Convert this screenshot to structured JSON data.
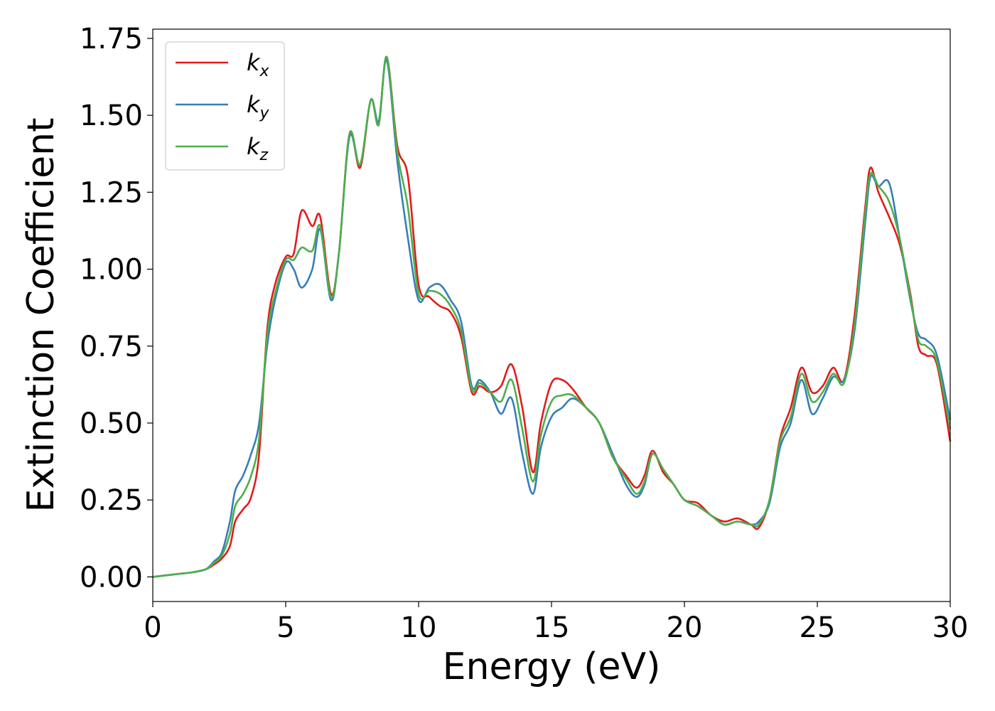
{
  "chart_data": {
    "type": "line",
    "xlabel": "Energy (eV)",
    "ylabel": "Extinction Coefficient",
    "xlim": [
      0,
      30
    ],
    "ylim": [
      -0.08,
      1.78
    ],
    "xticks": [
      0,
      5,
      10,
      15,
      20,
      25,
      30
    ],
    "xtick_labels": [
      "0",
      "5",
      "10",
      "15",
      "20",
      "25",
      "30"
    ],
    "yticks": [
      0.0,
      0.25,
      0.5,
      0.75,
      1.0,
      1.25,
      1.5,
      1.75
    ],
    "ytick_labels": [
      "0.00",
      "0.25",
      "0.50",
      "0.75",
      "1.00",
      "1.25",
      "1.50",
      "1.75"
    ],
    "grid": false,
    "legend_position": "top-left",
    "series": [
      {
        "name": "k_x",
        "label_main": "k",
        "label_sub": "x",
        "color": "#e41a1c",
        "x": [
          0,
          1,
          1.5,
          2,
          2.3,
          2.6,
          2.9,
          3.1,
          3.4,
          3.7,
          4.0,
          4.3,
          4.6,
          5.0,
          5.3,
          5.6,
          6.0,
          6.3,
          6.7,
          7.0,
          7.4,
          7.8,
          8.2,
          8.5,
          8.8,
          9.2,
          9.6,
          10.0,
          10.4,
          10.8,
          11.2,
          11.6,
          12.0,
          12.3,
          12.7,
          13.1,
          13.5,
          13.9,
          14.3,
          14.6,
          15.0,
          15.4,
          15.8,
          16.3,
          16.8,
          17.3,
          17.8,
          18.2,
          18.5,
          18.8,
          19.2,
          19.6,
          20.0,
          20.5,
          21.0,
          21.5,
          22.0,
          22.5,
          22.8,
          23.2,
          23.6,
          24.0,
          24.4,
          24.8,
          25.2,
          25.6,
          26.0,
          26.4,
          26.8,
          27.0,
          27.3,
          27.7,
          28.1,
          28.5,
          28.8,
          29.1,
          29.5,
          30.0
        ],
        "y": [
          0.0,
          0.01,
          0.015,
          0.025,
          0.04,
          0.06,
          0.1,
          0.18,
          0.22,
          0.26,
          0.4,
          0.8,
          0.95,
          1.04,
          1.05,
          1.19,
          1.14,
          1.17,
          0.92,
          1.05,
          1.44,
          1.33,
          1.55,
          1.47,
          1.69,
          1.4,
          1.3,
          0.95,
          0.91,
          0.88,
          0.86,
          0.78,
          0.6,
          0.62,
          0.6,
          0.62,
          0.69,
          0.55,
          0.34,
          0.5,
          0.63,
          0.64,
          0.61,
          0.55,
          0.5,
          0.39,
          0.33,
          0.29,
          0.33,
          0.41,
          0.34,
          0.3,
          0.25,
          0.24,
          0.2,
          0.18,
          0.19,
          0.17,
          0.16,
          0.25,
          0.45,
          0.55,
          0.68,
          0.6,
          0.62,
          0.68,
          0.64,
          0.85,
          1.2,
          1.33,
          1.25,
          1.17,
          1.08,
          0.92,
          0.75,
          0.72,
          0.69,
          0.44
        ]
      },
      {
        "name": "k_y",
        "label_main": "k",
        "label_sub": "y",
        "color": "#377eb8",
        "x": [
          0,
          1,
          1.5,
          2,
          2.3,
          2.6,
          2.9,
          3.1,
          3.4,
          3.7,
          4.0,
          4.3,
          4.6,
          5.0,
          5.3,
          5.6,
          6.0,
          6.3,
          6.7,
          7.0,
          7.4,
          7.8,
          8.2,
          8.5,
          8.8,
          9.2,
          9.6,
          10.0,
          10.4,
          10.8,
          11.2,
          11.6,
          12.0,
          12.3,
          12.7,
          13.1,
          13.5,
          13.9,
          14.3,
          14.6,
          15.0,
          15.4,
          15.8,
          16.3,
          16.8,
          17.3,
          17.8,
          18.2,
          18.5,
          18.8,
          19.2,
          19.6,
          20.0,
          20.5,
          21.0,
          21.5,
          22.0,
          22.5,
          22.8,
          23.2,
          23.6,
          24.0,
          24.4,
          24.8,
          25.2,
          25.6,
          26.0,
          26.4,
          26.8,
          27.0,
          27.3,
          27.7,
          28.1,
          28.5,
          28.8,
          29.1,
          29.5,
          30.0
        ],
        "y": [
          0.0,
          0.01,
          0.015,
          0.025,
          0.05,
          0.08,
          0.18,
          0.28,
          0.33,
          0.4,
          0.5,
          0.75,
          0.9,
          1.02,
          1.0,
          0.94,
          1.0,
          1.13,
          0.9,
          1.05,
          1.43,
          1.34,
          1.55,
          1.48,
          1.68,
          1.35,
          1.1,
          0.9,
          0.94,
          0.95,
          0.9,
          0.83,
          0.62,
          0.64,
          0.6,
          0.53,
          0.58,
          0.4,
          0.27,
          0.42,
          0.52,
          0.55,
          0.58,
          0.55,
          0.5,
          0.4,
          0.3,
          0.26,
          0.3,
          0.4,
          0.35,
          0.3,
          0.25,
          0.23,
          0.2,
          0.17,
          0.18,
          0.17,
          0.18,
          0.24,
          0.42,
          0.5,
          0.64,
          0.53,
          0.58,
          0.65,
          0.64,
          0.8,
          1.15,
          1.3,
          1.27,
          1.28,
          1.1,
          0.9,
          0.79,
          0.77,
          0.72,
          0.51
        ]
      },
      {
        "name": "k_z",
        "label_main": "k",
        "label_sub": "z",
        "color": "#4daf4a",
        "x": [
          0,
          1,
          1.5,
          2,
          2.3,
          2.6,
          2.9,
          3.1,
          3.4,
          3.7,
          4.0,
          4.3,
          4.6,
          5.0,
          5.3,
          5.6,
          6.0,
          6.3,
          6.7,
          7.0,
          7.4,
          7.8,
          8.2,
          8.5,
          8.8,
          9.2,
          9.6,
          10.0,
          10.4,
          10.8,
          11.2,
          11.6,
          12.0,
          12.3,
          12.7,
          13.1,
          13.5,
          13.9,
          14.3,
          14.6,
          15.0,
          15.4,
          15.8,
          16.3,
          16.8,
          17.3,
          17.8,
          18.2,
          18.5,
          18.8,
          19.2,
          19.6,
          20.0,
          20.5,
          21.0,
          21.5,
          22.0,
          22.5,
          22.8,
          23.2,
          23.6,
          24.0,
          24.4,
          24.8,
          25.2,
          25.6,
          26.0,
          26.4,
          26.8,
          27.0,
          27.3,
          27.7,
          28.1,
          28.5,
          28.8,
          29.1,
          29.5,
          30.0
        ],
        "y": [
          0.0,
          0.01,
          0.015,
          0.025,
          0.045,
          0.07,
          0.14,
          0.23,
          0.27,
          0.33,
          0.45,
          0.78,
          0.92,
          1.03,
          1.03,
          1.07,
          1.06,
          1.14,
          0.91,
          1.05,
          1.44,
          1.34,
          1.55,
          1.47,
          1.69,
          1.38,
          1.2,
          0.92,
          0.93,
          0.92,
          0.88,
          0.8,
          0.61,
          0.63,
          0.6,
          0.57,
          0.64,
          0.48,
          0.31,
          0.46,
          0.57,
          0.59,
          0.59,
          0.55,
          0.5,
          0.39,
          0.32,
          0.27,
          0.31,
          0.4,
          0.35,
          0.3,
          0.25,
          0.23,
          0.2,
          0.17,
          0.18,
          0.17,
          0.17,
          0.25,
          0.44,
          0.52,
          0.66,
          0.57,
          0.6,
          0.66,
          0.63,
          0.82,
          1.18,
          1.31,
          1.27,
          1.22,
          1.1,
          0.91,
          0.77,
          0.75,
          0.7,
          0.48
        ]
      }
    ]
  }
}
